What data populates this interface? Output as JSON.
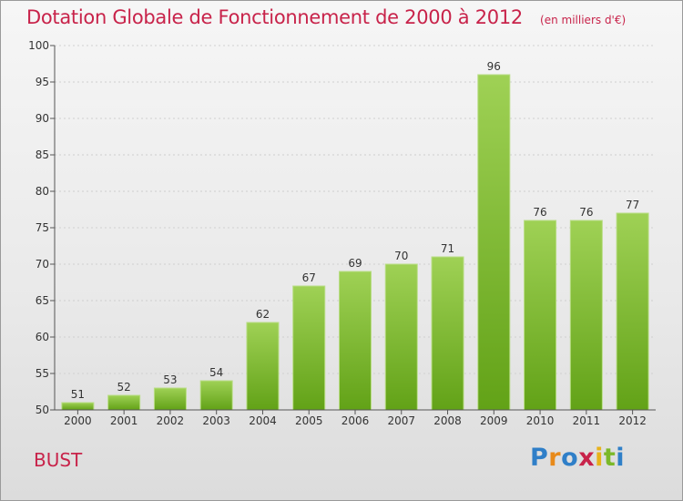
{
  "header": {
    "title": "Dotation Globale de Fonctionnement de 2000 à 2012",
    "unit": "(en milliers d'€)"
  },
  "footer": {
    "commune": "BUST",
    "brand_letters": [
      "P",
      "r",
      "o",
      "x",
      "i",
      "t",
      "i"
    ],
    "brand_colors": [
      "#2f7fc8",
      "#e88a1a",
      "#2f7fc8",
      "#c8234a",
      "#e8b21a",
      "#7bb829",
      "#2f7fc8"
    ]
  },
  "colors": {
    "bar_light": "#9fd155",
    "bar_dark": "#62a217",
    "title": "#c8234a"
  },
  "chart_data": {
    "type": "bar",
    "title": "Dotation Globale de Fonctionnement de 2000 à 2012",
    "subtitle": "(en milliers d'€)",
    "categories": [
      "2000",
      "2001",
      "2002",
      "2003",
      "2004",
      "2005",
      "2006",
      "2007",
      "2008",
      "2009",
      "2010",
      "2011",
      "2012"
    ],
    "values": [
      51,
      52,
      53,
      54,
      62,
      67,
      69,
      70,
      71,
      96,
      76,
      76,
      77
    ],
    "ylim": [
      50,
      100
    ],
    "yticks": [
      50,
      55,
      60,
      65,
      70,
      75,
      80,
      85,
      90,
      95,
      100
    ],
    "grid": true,
    "legend": "none"
  }
}
